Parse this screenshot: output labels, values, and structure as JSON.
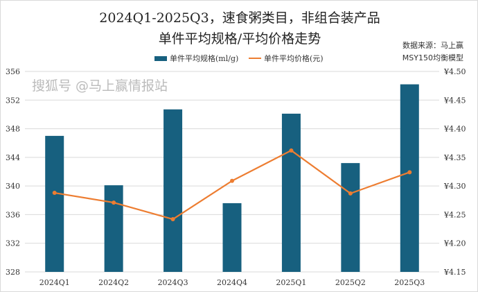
{
  "chart_data": {
    "type": "bar+line",
    "title": "2024Q1-2025Q3，速食粥类目，非组合装产品",
    "subtitle": "单件平均规格/平均价格走势",
    "source_line1": "数据来源：马上赢",
    "source_line2": "MSY150均衡模型",
    "categories": [
      "2024Q1",
      "2024Q2",
      "2024Q3",
      "2024Q4",
      "2025Q1",
      "2025Q2",
      "2025Q3"
    ],
    "series": [
      {
        "name": "单件平均规格(ml/g)",
        "type": "bar",
        "axis": "left",
        "color": "#17607f",
        "values": [
          347.0,
          340.1,
          350.7,
          337.6,
          350.1,
          343.2,
          354.2
        ]
      },
      {
        "name": "单件平均价格(元)",
        "type": "line",
        "axis": "right",
        "color": "#ed7d31",
        "values": [
          4.288,
          4.271,
          4.242,
          4.309,
          4.362,
          4.287,
          4.324
        ]
      }
    ],
    "left_axis": {
      "ylim": [
        328,
        356
      ],
      "ticks": [
        "328",
        "332",
        "336",
        "340",
        "344",
        "348",
        "352",
        "356"
      ]
    },
    "right_axis": {
      "ylim": [
        4.15,
        4.5
      ],
      "ticks": [
        "¥4.15",
        "¥4.20",
        "¥4.25",
        "¥4.30",
        "¥4.35",
        "¥4.40",
        "¥4.45",
        "¥4.50"
      ]
    },
    "grid": true,
    "legend": "top-center"
  },
  "watermark": "搜狐号 @马上赢情报站"
}
